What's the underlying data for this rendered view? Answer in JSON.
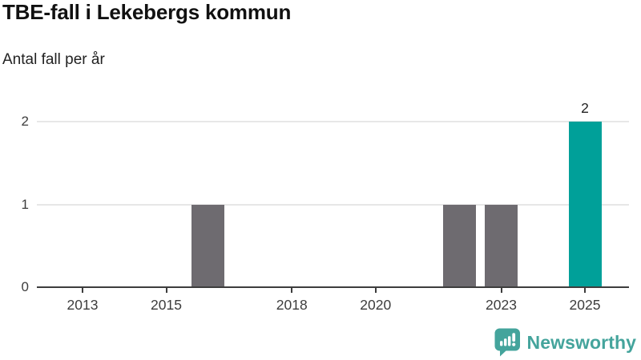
{
  "header": {
    "title": "TBE-fall i Lekebergs kommun",
    "subtitle": "Antal fall per år"
  },
  "footer": {
    "brand": "Newsworthy",
    "logo_icon": "bar-chart-speech-bubble",
    "brand_color": "#44a49c"
  },
  "colors": {
    "bar_default": "#6e6b70",
    "bar_highlight": "#00a099",
    "gridline": "#e7e7e7",
    "axis": "#3d3d3d",
    "tick_label": "#3d3d3d"
  },
  "chart_data": {
    "type": "bar",
    "title": "TBE-fall i Lekebergs kommun",
    "subtitle": "Antal fall per år",
    "categories": [
      2012,
      2013,
      2014,
      2015,
      2016,
      2017,
      2018,
      2019,
      2020,
      2021,
      2022,
      2023,
      2024,
      2025
    ],
    "values": [
      0,
      0,
      0,
      0,
      1,
      0,
      0,
      0,
      0,
      0,
      1,
      1,
      0,
      2
    ],
    "highlighted_category": 2025,
    "value_labels": [
      {
        "category": 2025,
        "text": "2"
      }
    ],
    "x_ticks": [
      2013,
      2015,
      2018,
      2020,
      2023,
      2025
    ],
    "y_ticks": [
      0,
      1,
      2
    ],
    "ylim": [
      0,
      2
    ],
    "xlabel": "",
    "ylabel": "Antal fall per år",
    "grid": "horizontal",
    "legend": "none"
  }
}
